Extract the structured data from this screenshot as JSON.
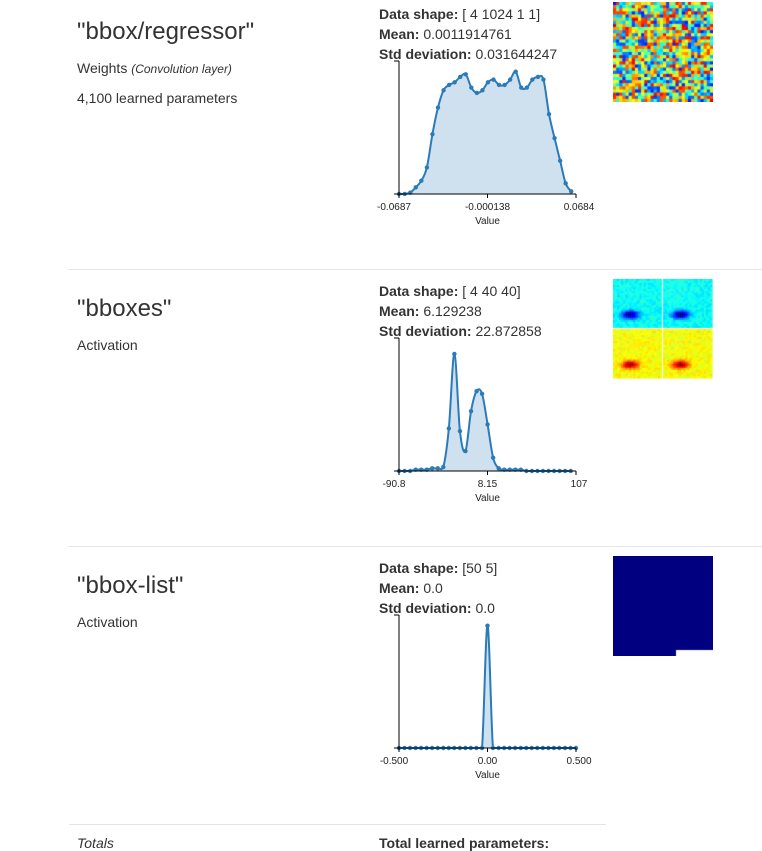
{
  "layers": [
    {
      "name": "\"bbox/regressor\"",
      "type": "Weights",
      "subtype": "(Convolution layer)",
      "params": "4,100 learned parameters",
      "stats": {
        "shape_label": "Data shape:",
        "shape": "[ 4 1024 1 1]",
        "mean_label": "Mean:",
        "mean": "0.0011914761",
        "std_label": "Std deviation:",
        "std": "0.031644247"
      },
      "viz": "random-noise-heatmap",
      "chart_data": {
        "type": "area",
        "xlabel": "Value",
        "xticks": [
          "-0.0687",
          "-0.000138",
          "0.0684"
        ],
        "xlim": [
          -0.0687,
          0.0684
        ],
        "ylim": [
          0,
          1
        ],
        "x": [
          -0.0687,
          -0.0643,
          -0.06,
          -0.0557,
          -0.0514,
          -0.0471,
          -0.0428,
          -0.0385,
          -0.0342,
          -0.0299,
          -0.0256,
          -0.0213,
          -0.017,
          -0.0127,
          -0.0084,
          -0.0041,
          0.0002,
          0.0045,
          0.0088,
          0.0131,
          0.0174,
          0.0217,
          0.026,
          0.0303,
          0.0346,
          0.0389,
          0.0432,
          0.0475,
          0.0518,
          0.0561,
          0.0604,
          0.0647
        ],
        "y": [
          0.0,
          0.0,
          0.01,
          0.05,
          0.1,
          0.2,
          0.45,
          0.65,
          0.78,
          0.82,
          0.84,
          0.88,
          0.9,
          0.8,
          0.76,
          0.78,
          0.84,
          0.86,
          0.82,
          0.82,
          0.86,
          0.92,
          0.8,
          0.8,
          0.86,
          0.88,
          0.86,
          0.6,
          0.42,
          0.25,
          0.08,
          0.02
        ]
      }
    },
    {
      "name": "\"bboxes\"",
      "type": "Activation",
      "subtype": "",
      "params": "",
      "stats": {
        "shape_label": "Data shape:",
        "shape": "[ 4 40 40]",
        "mean_label": "Mean:",
        "mean": "6.129238",
        "std_label": "Std deviation:",
        "std": "22.872858"
      },
      "viz": "activation-heatmap-grid",
      "chart_data": {
        "type": "area",
        "xlabel": "Value",
        "xticks": [
          "-90.8",
          "8.15",
          "107"
        ],
        "xlim": [
          -90.8,
          107
        ],
        "ylim": [
          0,
          1
        ],
        "x": [
          -90.8,
          -84.6,
          -78.4,
          -72.2,
          -66.0,
          -59.8,
          -53.7,
          -47.5,
          -41.3,
          -35.1,
          -28.9,
          -22.7,
          -16.5,
          -10.3,
          -4.1,
          2.0,
          8.2,
          14.4,
          20.6,
          26.8,
          33.0,
          39.2,
          45.4,
          51.6,
          57.8,
          63.9,
          70.1,
          76.3,
          82.5,
          88.7,
          94.9,
          101.1
        ],
        "y": [
          0.0,
          0.0,
          0.0,
          0.01,
          0.01,
          0.01,
          0.02,
          0.02,
          0.03,
          0.32,
          0.88,
          0.3,
          0.15,
          0.45,
          0.6,
          0.58,
          0.35,
          0.1,
          0.02,
          0.01,
          0.01,
          0.01,
          0.01,
          0.0,
          0.0,
          0.0,
          0.0,
          0.0,
          0.0,
          0.0,
          0.0,
          0.0
        ]
      }
    },
    {
      "name": "\"bbox-list\"",
      "type": "Activation",
      "subtype": "",
      "params": "",
      "stats": {
        "shape_label": "Data shape:",
        "shape": "[50 5]",
        "mean_label": "Mean:",
        "mean": "0.0",
        "std_label": "Std deviation:",
        "std": "0.0"
      },
      "viz": "solid-navy-block",
      "chart_data": {
        "type": "area",
        "xlabel": "Value",
        "xticks": [
          "-0.500",
          "0.00",
          "0.500"
        ],
        "xlim": [
          -0.5,
          0.5
        ],
        "ylim": [
          0,
          1
        ],
        "x": [
          -0.5,
          -0.469,
          -0.438,
          -0.406,
          -0.375,
          -0.344,
          -0.313,
          -0.281,
          -0.25,
          -0.219,
          -0.188,
          -0.156,
          -0.125,
          -0.094,
          -0.063,
          -0.031,
          0.0,
          0.031,
          0.063,
          0.094,
          0.125,
          0.156,
          0.188,
          0.219,
          0.25,
          0.281,
          0.313,
          0.344,
          0.375,
          0.406,
          0.438,
          0.469,
          0.5
        ],
        "y": [
          0,
          0,
          0,
          0,
          0,
          0,
          0,
          0,
          0,
          0,
          0,
          0,
          0,
          0,
          0,
          0,
          0.92,
          0,
          0,
          0,
          0,
          0,
          0,
          0,
          0,
          0,
          0,
          0,
          0,
          0,
          0,
          0,
          0
        ]
      }
    }
  ],
  "totals": {
    "label": "Totals",
    "params_label": "Total learned parameters:"
  },
  "colors": {
    "series": "#2b7bb9",
    "fill": "#cfe1ef",
    "axis": "#000000",
    "navy": "#000080"
  }
}
